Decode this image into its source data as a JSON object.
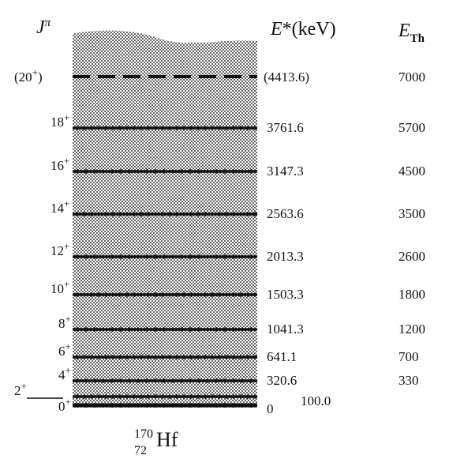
{
  "headers": {
    "jpi": {
      "symbol": "J",
      "sup": "π"
    },
    "energy": {
      "symbol": "E",
      "rest": "*(keV)"
    },
    "theory": {
      "symbol": "E",
      "sub": "Th"
    }
  },
  "nucleus": {
    "mass": "170",
    "z": "72",
    "symbol": "Hf"
  },
  "levels": [
    {
      "spin": "0",
      "parity": "+",
      "energy": "0",
      "theory": ""
    },
    {
      "spin": "2",
      "parity": "+",
      "energy": "100.0",
      "theory": ""
    },
    {
      "spin": "4",
      "parity": "+",
      "energy": "320.6",
      "theory": "330"
    },
    {
      "spin": "6",
      "parity": "+",
      "energy": "641.1",
      "theory": "700"
    },
    {
      "spin": "8",
      "parity": "+",
      "energy": "1041.3",
      "theory": "1200"
    },
    {
      "spin": "10",
      "parity": "+",
      "energy": "1503.3",
      "theory": "1800"
    },
    {
      "spin": "12",
      "parity": "+",
      "energy": "2013.3",
      "theory": "2600"
    },
    {
      "spin": "14",
      "parity": "+",
      "energy": "2563.6",
      "theory": "3500"
    },
    {
      "spin": "16",
      "parity": "+",
      "energy": "3147.3",
      "theory": "4500"
    },
    {
      "spin": "18",
      "parity": "+",
      "energy": "3761.6",
      "theory": "5700"
    },
    {
      "spin": "(20",
      "parity": "+",
      "spin_suffix": ")",
      "energy": "(4413.6)",
      "theory": "7000",
      "tentative": true
    }
  ],
  "colors": {
    "ink": "#111111",
    "dot": "#2a2a2a",
    "background": "#ffffff"
  }
}
